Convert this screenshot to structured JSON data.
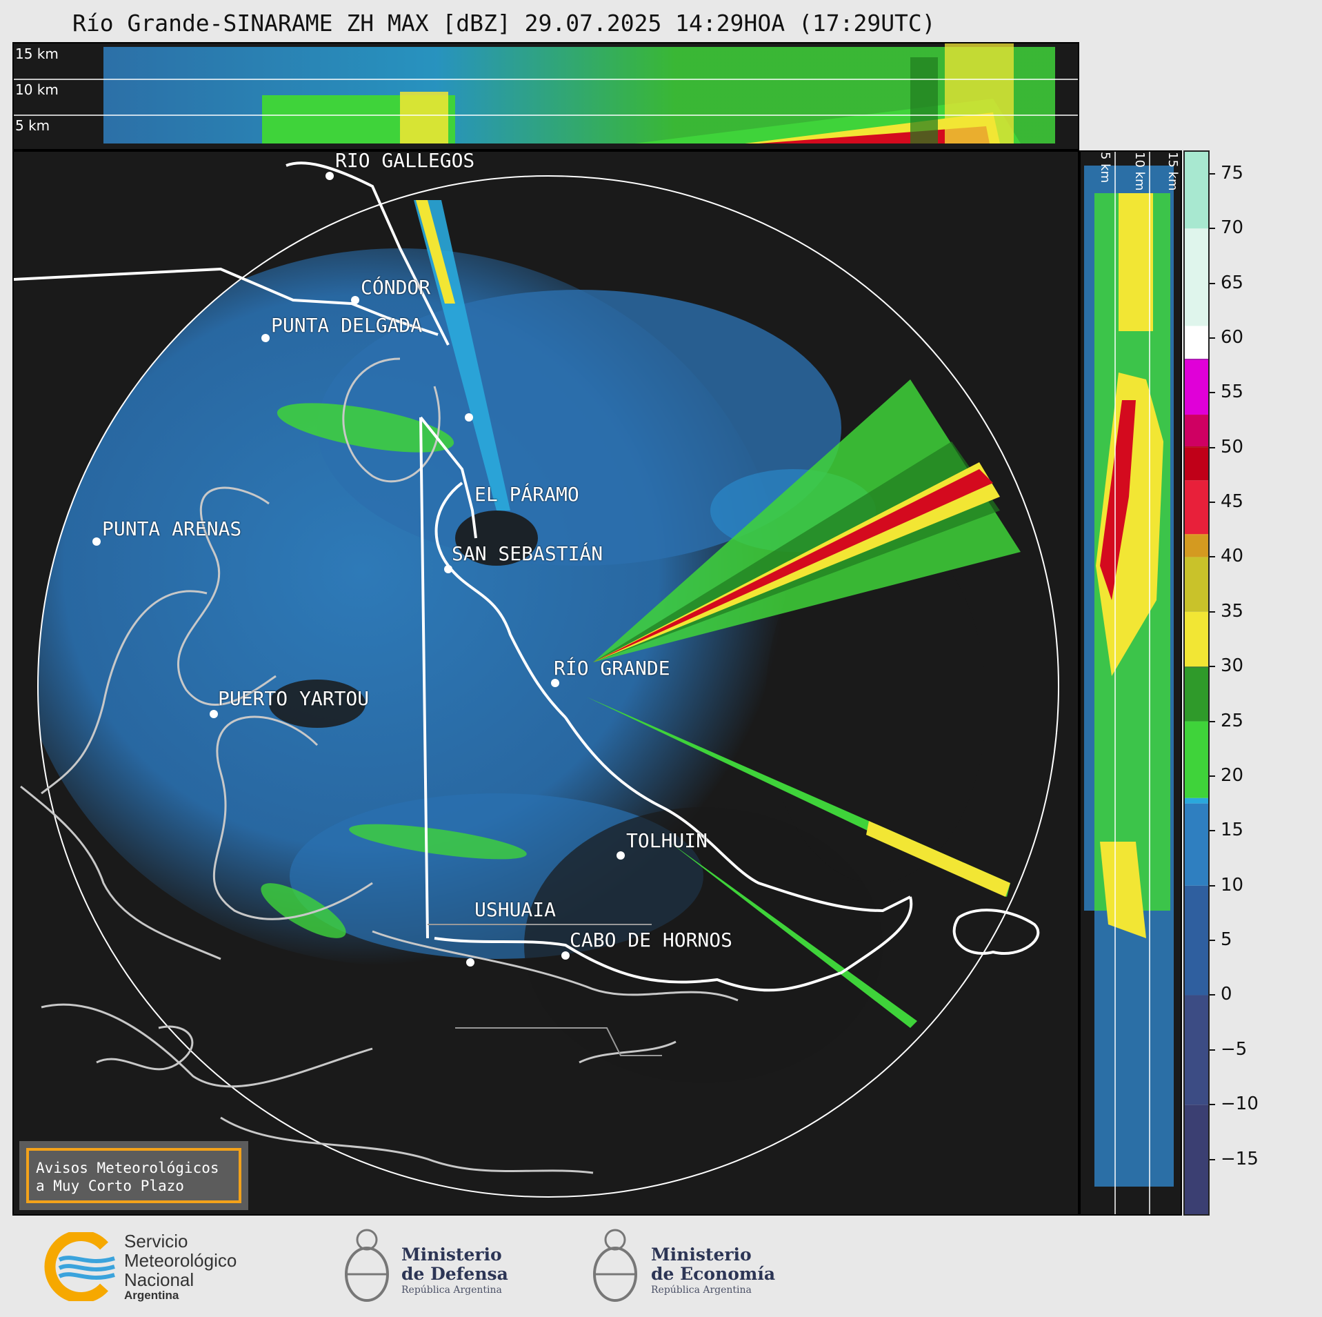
{
  "title": "Río Grande-SINARAME ZH MAX [dBZ] 29.07.2025 14:29HOA (17:29UTC)",
  "top_panel": {
    "altitudes": [
      "15 km",
      "10 km",
      "5 km"
    ]
  },
  "side_panel": {
    "altitudes": [
      "5 km",
      "10 km",
      "15 km"
    ]
  },
  "map": {
    "cities": [
      {
        "name": "RÍO GALLEGOS"
      },
      {
        "name": "CÓNDOR"
      },
      {
        "name": "PUNTA DELGADA"
      },
      {
        "name": "EL PÁRAMO"
      },
      {
        "name": "PUNTA ARENAS"
      },
      {
        "name": "SAN SEBASTIÁN"
      },
      {
        "name": "RÍO GRANDE"
      },
      {
        "name": "PUERTO YARTOU"
      },
      {
        "name": "TOLHUIN"
      },
      {
        "name": "USHUAIA"
      },
      {
        "name": "CABO DE HORNOS"
      }
    ],
    "warning": {
      "line1": "Avisos Meteorológicos",
      "line2": "a Muy Corto Plazo"
    }
  },
  "colorbar": {
    "unit": "dBZ",
    "ticks": [
      "75",
      "70",
      "65",
      "60",
      "55",
      "50",
      "45",
      "40",
      "35",
      "30",
      "25",
      "20",
      "15",
      "10",
      "5",
      "0",
      "−5",
      "−10",
      "−15"
    ],
    "range": [
      -20,
      77
    ],
    "colors": {
      "low": "#3a3e6e",
      "blue": "#2f7fc0",
      "cyan": "#2aa8dc",
      "green": "#3fd33a",
      "darkgreen": "#1f7a1f",
      "yellow": "#f2e634",
      "orange": "#e08c18",
      "red": "#d40a1e",
      "magenta": "#e000d8",
      "purple": "#9b00a5",
      "white": "#ffffff",
      "teal": "#8ee0c0"
    }
  },
  "logos": {
    "smn": {
      "line1": "Servicio",
      "line2": "Meteorológico",
      "line3": "Nacional",
      "line4": "Argentina"
    },
    "defensa": {
      "line1": "Ministerio",
      "line2": "de Defensa",
      "line3": "República Argentina"
    },
    "economia": {
      "line1": "Ministerio",
      "line2": "de Economía",
      "line3": "República Argentina"
    }
  }
}
